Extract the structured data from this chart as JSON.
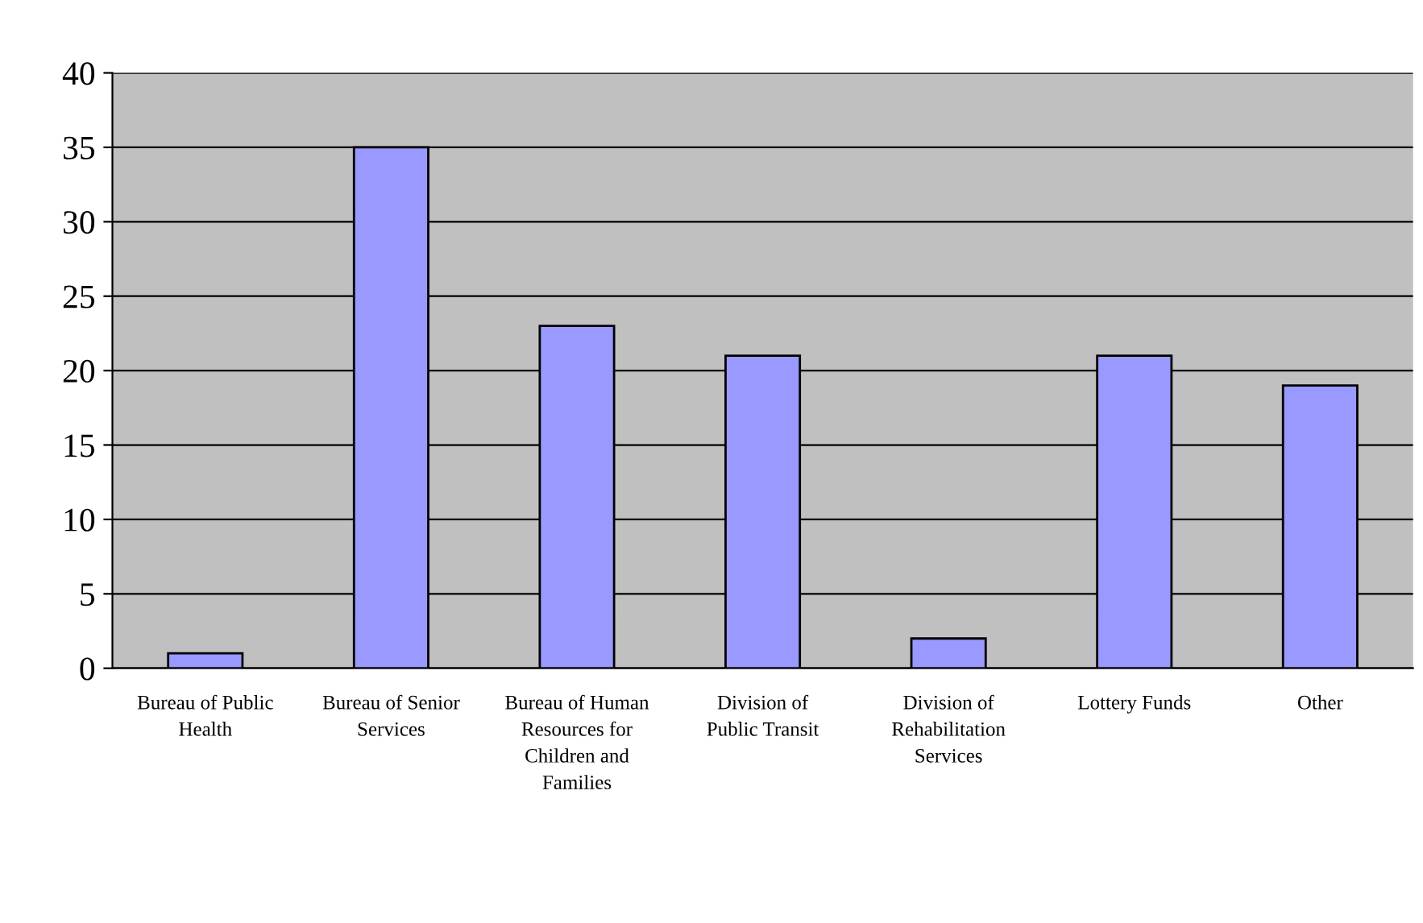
{
  "chart_data": {
    "type": "bar",
    "categories": [
      "Bureau of Public Health",
      "Bureau of Senior Services",
      "Bureau of Human Resources for Children and Families",
      "Division of Public Transit",
      "Division of Rehabilitation Services",
      "Lottery Funds",
      "Other"
    ],
    "values": [
      1,
      35,
      23,
      21,
      2,
      21,
      19
    ],
    "color": "#9999ff",
    "ylim": [
      0,
      40
    ],
    "yticks": [
      0,
      5,
      10,
      15,
      20,
      25,
      30,
      35,
      40
    ],
    "grid": "y",
    "legend": false
  }
}
